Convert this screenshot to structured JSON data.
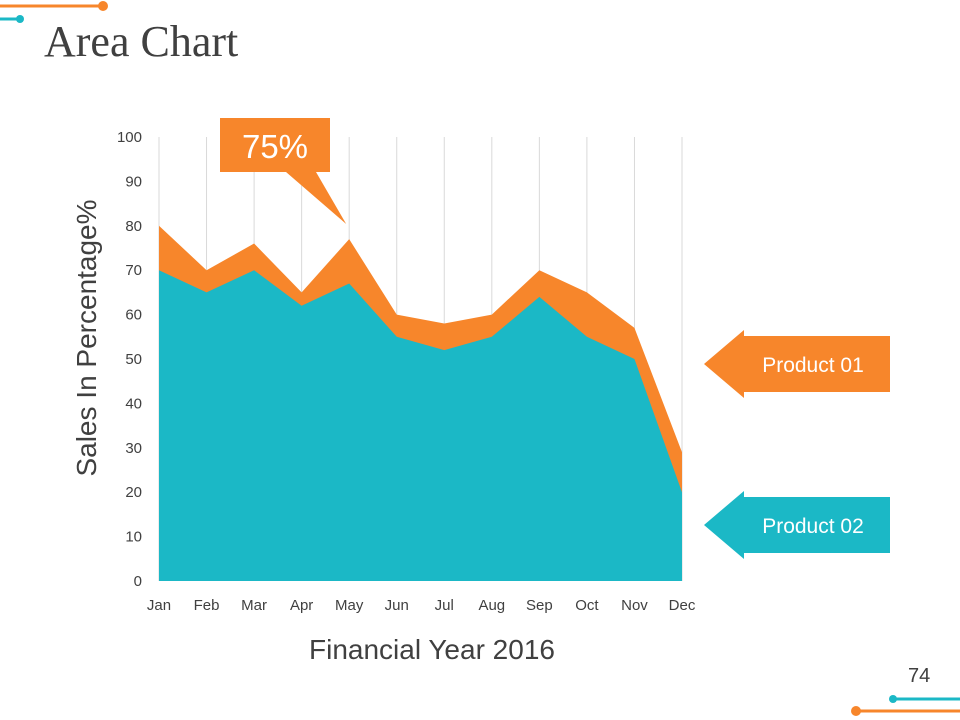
{
  "slide": {
    "title": "Area Chart",
    "page_number": "74"
  },
  "colors": {
    "product01": "#F7862B",
    "product02": "#1BB8C6",
    "text": "#404040",
    "gridline": "#D9D9D9"
  },
  "chart_data": {
    "type": "area",
    "title": "",
    "xlabel": "Financial Year 2016",
    "ylabel": "Sales In Percentage%",
    "ylim": [
      0,
      100
    ],
    "y_ticks": [
      0,
      10,
      20,
      30,
      40,
      50,
      60,
      70,
      80,
      90,
      100
    ],
    "categories": [
      "Jan",
      "Feb",
      "Mar",
      "Apr",
      "May",
      "Jun",
      "Jul",
      "Aug",
      "Sep",
      "Oct",
      "Nov",
      "Dec"
    ],
    "series": [
      {
        "name": "Product 01",
        "values": [
          80,
          70,
          76,
          65,
          77,
          60,
          58,
          60,
          70,
          65,
          57,
          29
        ]
      },
      {
        "name": "Product 02",
        "values": [
          70,
          65,
          70,
          62,
          67,
          55,
          52,
          55,
          64,
          55,
          50,
          20
        ]
      }
    ],
    "vertical_gridlines": true,
    "callout": {
      "text": "75%",
      "month": "May"
    }
  }
}
